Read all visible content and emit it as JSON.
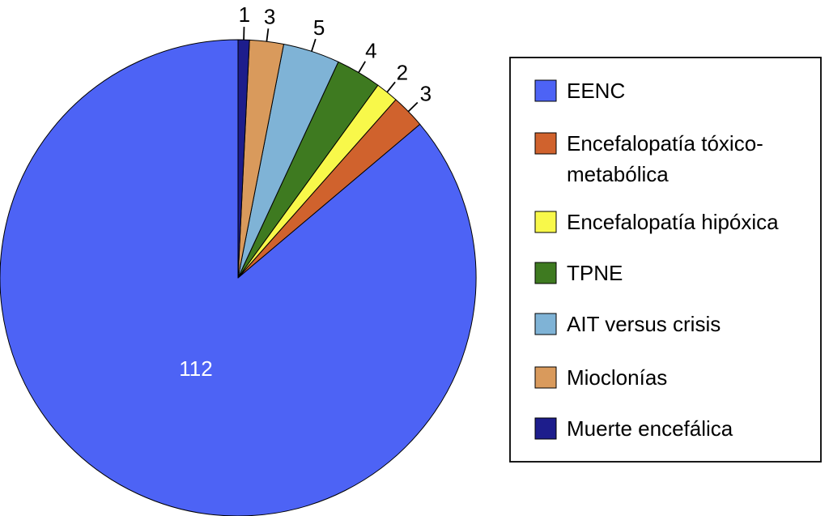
{
  "chart_data": {
    "type": "pie",
    "start": "top",
    "direction": "counterclockwise",
    "slices": [
      {
        "label": "EENC",
        "value": 112,
        "color": "#4d63f5"
      },
      {
        "label": "Encefalopatía tóxico-metabólica",
        "legend_lines": [
          "Encefalopatía tóxico-",
          "metabólica"
        ],
        "value": 3,
        "color": "#d0622d"
      },
      {
        "label": "Encefalopatía hipóxica",
        "value": 2,
        "color": "#f8f84a"
      },
      {
        "label": "TPNE",
        "value": 4,
        "color": "#3e7a20"
      },
      {
        "label": "AIT versus crisis",
        "value": 5,
        "color": "#7fb3d6"
      },
      {
        "label": "Mioclonías",
        "value": 3,
        "color": "#d99a5c"
      },
      {
        "label": "Muerte encefálica",
        "value": 1,
        "color": "#1d1d8c"
      }
    ],
    "data_labels": [
      "112",
      "3",
      "2",
      "4",
      "5",
      "3",
      "1"
    ],
    "legend": "right"
  }
}
